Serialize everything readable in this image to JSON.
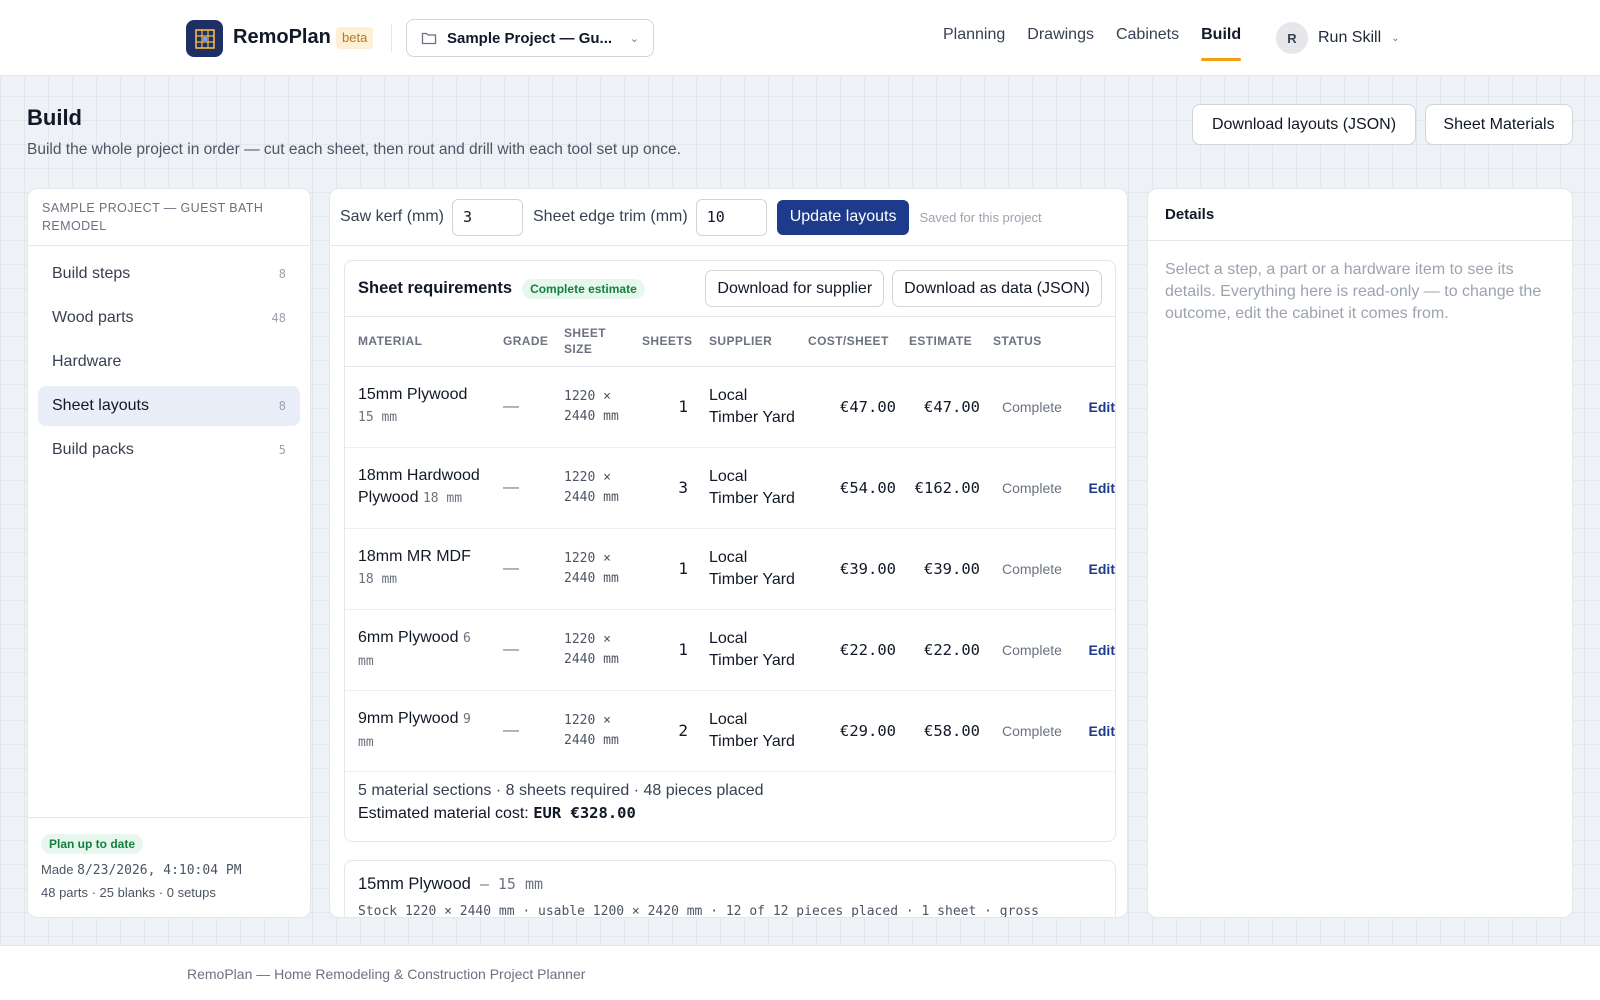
{
  "app": {
    "name": "RemoPlan",
    "badge": "beta",
    "project_select": "Sample Project — Gu...",
    "logo_icon": "grid-plan-icon",
    "accent": "#1e3a8a",
    "brand": "#1e2f66",
    "nav_underline": "#f59e0b"
  },
  "nav": {
    "items": [
      {
        "label": "Planning",
        "active": false
      },
      {
        "label": "Drawings",
        "active": false
      },
      {
        "label": "Cabinets",
        "active": false
      },
      {
        "label": "Build",
        "active": true
      }
    ]
  },
  "user": {
    "initial": "R",
    "name": "Run Skill"
  },
  "page": {
    "title": "Build",
    "subtitle": "Build the whole project in order — cut each sheet, then rout and drill with each tool set up once.",
    "download_layouts": "Download layouts (JSON)",
    "sheet_materials": "Sheet Materials"
  },
  "sidebar": {
    "project": "SAMPLE PROJECT — GUEST BATH REMODEL",
    "items": [
      {
        "label": "Build steps",
        "count": "8",
        "active": false
      },
      {
        "label": "Wood parts",
        "count": "48",
        "active": false
      },
      {
        "label": "Hardware",
        "count": "",
        "active": false
      },
      {
        "label": "Sheet layouts",
        "count": "8",
        "active": true
      },
      {
        "label": "Build packs",
        "count": "5",
        "active": false
      }
    ],
    "status_badge": "Plan up to date",
    "made_label": "Made",
    "made_value": "8/23/2026, 4:10:04 PM",
    "stats": "48 parts · 25 blanks · 0 setups"
  },
  "toolbar": {
    "kerf_label": "Saw kerf (mm)",
    "kerf_value": "3",
    "trim_label": "Sheet edge trim (mm)",
    "trim_value": "10",
    "update_button": "Update layouts",
    "saved_note": "Saved for this project"
  },
  "requirements": {
    "title": "Sheet requirements",
    "badge": "Complete estimate",
    "supplier_button": "Download for supplier",
    "json_button": "Download as data (JSON)",
    "columns": {
      "material": "MATERIAL",
      "grade": "GRADE",
      "sheet_size": "SHEET SIZE",
      "sheets": "SHEETS",
      "supplier": "SUPPLIER",
      "cost": "COST/SHEET",
      "estimate": "ESTIMATE",
      "status": "STATUS"
    },
    "rows": [
      {
        "material": "15mm Plywood",
        "thickness": "15 mm",
        "grade": "—",
        "size": "1220 × 2440 mm",
        "sheets": "1",
        "supplier": "Local Timber Yard",
        "cost": "€47.00",
        "estimate": "€47.00",
        "status": "Complete",
        "action": "Edit"
      },
      {
        "material": "18mm Hardwood Plywood",
        "thickness": "18 mm",
        "grade": "—",
        "size": "1220 × 2440 mm",
        "sheets": "3",
        "supplier": "Local Timber Yard",
        "cost": "€54.00",
        "estimate": "€162.00",
        "status": "Complete",
        "action": "Edit"
      },
      {
        "material": "18mm MR MDF",
        "thickness": "18 mm",
        "grade": "—",
        "size": "1220 × 2440 mm",
        "sheets": "1",
        "supplier": "Local Timber Yard",
        "cost": "€39.00",
        "estimate": "€39.00",
        "status": "Complete",
        "action": "Edit"
      },
      {
        "material": "6mm Plywood",
        "thickness": "6 mm",
        "grade": "—",
        "size": "1220 × 2440 mm",
        "sheets": "1",
        "supplier": "Local Timber Yard",
        "cost": "€22.00",
        "estimate": "€22.00",
        "status": "Complete",
        "action": "Edit"
      },
      {
        "material": "9mm Plywood",
        "thickness": "9 mm",
        "grade": "—",
        "size": "1220 × 2440 mm",
        "sheets": "2",
        "supplier": "Local Timber Yard",
        "cost": "€29.00",
        "estimate": "€58.00",
        "status": "Complete",
        "action": "Edit"
      }
    ],
    "summary_line": "5 material sections · 8 sheets required · 48 pieces placed",
    "cost_label": "Estimated material cost:",
    "cost_value": "EUR €328.00"
  },
  "section": {
    "title": "15mm Plywood",
    "thickness": "15 mm",
    "description": "Stock 1220 × 2440 mm · usable 1200 × 2420 mm · 12 of 12 pieces placed · 1 sheet · gross"
  },
  "details": {
    "title": "Details",
    "body": "Select a step, a part or a hardware item to see its details. Everything here is read-only — to change the outcome, edit the cabinet it comes from."
  },
  "footer": {
    "text": "RemoPlan — Home Remodeling & Construction Project Planner"
  }
}
